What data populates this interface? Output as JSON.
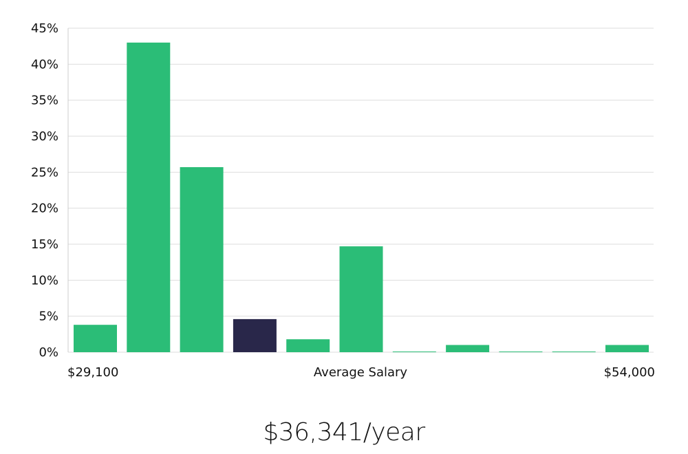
{
  "chart_data": {
    "type": "bar",
    "x_min_label": "$29,100",
    "x_max_label": "$54,000",
    "xlabel": "Average Salary",
    "ylabel": "",
    "ylim": [
      0,
      45
    ],
    "yticks": [
      "0%",
      "5%",
      "10%",
      "15%",
      "20%",
      "25%",
      "30%",
      "35%",
      "40%",
      "45%"
    ],
    "y_tick_values": [
      0,
      5,
      10,
      15,
      20,
      25,
      30,
      35,
      40,
      45
    ],
    "values": [
      3.8,
      43.0,
      25.7,
      4.6,
      1.8,
      14.7,
      0.1,
      1.0,
      0.1,
      0.1,
      1.0
    ],
    "highlight_index": 3,
    "grid": true,
    "colors": {
      "bar": "#2bbd77",
      "highlight": "#29274a",
      "grid": "#dddddd"
    }
  },
  "headline": {
    "salary": "$36,341/year"
  }
}
